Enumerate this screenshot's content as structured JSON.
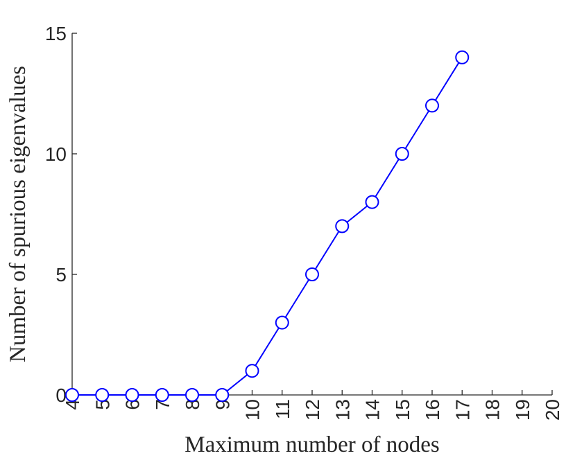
{
  "chart_data": {
    "type": "line",
    "title": "",
    "xlabel": "Maximum number of nodes",
    "ylabel": "Number of spurious eigenvalues",
    "xlim": [
      4,
      20
    ],
    "ylim": [
      0,
      15
    ],
    "xticks": [
      4,
      5,
      6,
      7,
      8,
      9,
      10,
      11,
      12,
      13,
      14,
      15,
      16,
      17,
      18,
      19,
      20
    ],
    "yticks": [
      0,
      5,
      10,
      15
    ],
    "grid": false,
    "marker": "circle-open",
    "color": "#0000ff",
    "x": [
      4,
      5,
      6,
      7,
      8,
      9,
      10,
      11,
      12,
      13,
      14,
      15,
      16,
      17
    ],
    "y": [
      0,
      0,
      0,
      0,
      0,
      0,
      1,
      3,
      5,
      7,
      8,
      10,
      12,
      14
    ]
  }
}
